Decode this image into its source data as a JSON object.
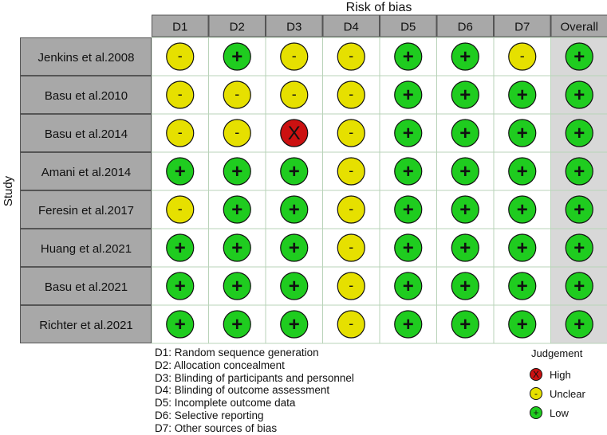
{
  "chart_data": {
    "type": "table",
    "title": "Risk of bias",
    "ylabel": "Study",
    "columns": [
      "D1",
      "D2",
      "D3",
      "D4",
      "D5",
      "D6",
      "D7",
      "Overall"
    ],
    "rows": [
      {
        "study": "Jenkins et al.2008",
        "judgements": [
          "-",
          "+",
          "-",
          "-",
          "+",
          "+",
          "-",
          "+"
        ]
      },
      {
        "study": "Basu et al.2010",
        "judgements": [
          "-",
          "-",
          "-",
          "-",
          "+",
          "+",
          "+",
          "+"
        ]
      },
      {
        "study": "Basu et al.2014",
        "judgements": [
          "-",
          "-",
          "X",
          "-",
          "+",
          "+",
          "+",
          "+"
        ]
      },
      {
        "study": "Amani et al.2014",
        "judgements": [
          "+",
          "+",
          "+",
          "-",
          "+",
          "+",
          "+",
          "+"
        ]
      },
      {
        "study": "Feresin et al.2017",
        "judgements": [
          "-",
          "+",
          "+",
          "-",
          "+",
          "+",
          "+",
          "+"
        ]
      },
      {
        "study": "Huang et al.2021",
        "judgements": [
          "+",
          "+",
          "+",
          "-",
          "+",
          "+",
          "+",
          "+"
        ]
      },
      {
        "study": "Basu et al.2021",
        "judgements": [
          "+",
          "+",
          "+",
          "-",
          "+",
          "+",
          "+",
          "+"
        ]
      },
      {
        "study": "Richter et al.2021",
        "judgements": [
          "+",
          "+",
          "+",
          "-",
          "+",
          "+",
          "+",
          "+"
        ]
      }
    ],
    "domains": [
      "D1: Random sequence generation",
      "D2: Allocation concealment",
      "D3: Blinding of participants and personnel",
      "D4: Blinding of outcome assessment",
      "D5: Incomplete outcome data",
      "D6: Selective reporting",
      "D7: Other sources of bias"
    ],
    "legend": {
      "title": "Judgement",
      "placement": "bottom-right",
      "items": [
        {
          "symbol": "X",
          "label": "High",
          "color": "#cc1111"
        },
        {
          "symbol": "-",
          "label": "Unclear",
          "color": "#e6e000"
        },
        {
          "symbol": "+",
          "label": "Low",
          "color": "#1fcc1f"
        }
      ]
    },
    "colors": {
      "header_fill": "#a8a8a8",
      "overall_column_fill": "#d8d8d8",
      "grid_line": "#b9d3b9"
    }
  }
}
